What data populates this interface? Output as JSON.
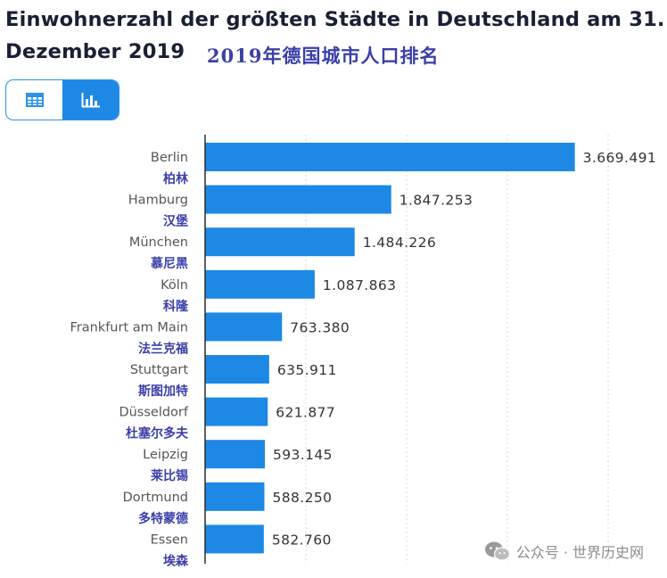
{
  "header": {
    "title": "Einwohnerzahl der größten Städte in Deutschland am 31. Dezember 2019",
    "subtitle_cn": "2019年德国城市人口排名"
  },
  "view_toggle": {
    "table_icon": "table-icon",
    "chart_icon": "bar-chart-icon",
    "active": "chart"
  },
  "colors": {
    "bar": "#1e88e5",
    "label_cn": "#3b3fa8",
    "label": "#555555",
    "value": "#333333",
    "axis": "#2a2a2a",
    "grid": "#d9d9d9"
  },
  "chart_data": {
    "type": "bar",
    "orientation": "horizontal",
    "title": "Einwohnerzahl der größten Städte in Deutschland am 31. Dezember 2019",
    "categories": [
      "Berlin",
      "Hamburg",
      "München",
      "Köln",
      "Frankfurt am Main",
      "Stuttgart",
      "Düsseldorf",
      "Leipzig",
      "Dortmund",
      "Essen"
    ],
    "categories_cn": [
      "柏林",
      "汉堡",
      "慕尼黑",
      "科隆",
      "法兰克福",
      "斯图加特",
      "杜塞尔多夫",
      "莱比锡",
      "多特蒙德",
      "埃森"
    ],
    "values": [
      3669491,
      1847253,
      1484226,
      1087863,
      763380,
      635911,
      621877,
      593145,
      588250,
      582760
    ],
    "value_labels": [
      "3.669.491",
      "1.847.253",
      "1.484.226",
      "1.087.863",
      "763.380",
      "635.911",
      "621.877",
      "593.145",
      "588.250",
      "582.760"
    ],
    "xlim": [
      0,
      4000000
    ],
    "grid": true,
    "xlabel": "",
    "ylabel": ""
  },
  "watermark": {
    "icon": "wechat-icon",
    "text": "公众号 · 世界历史网"
  }
}
